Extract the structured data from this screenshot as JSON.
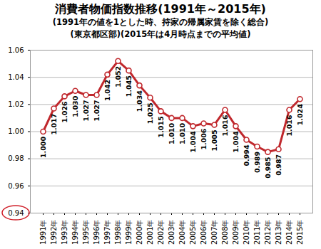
{
  "chart_data": {
    "type": "line",
    "title": "消費者物価指数推移(1991年～2015年)",
    "subtitle": [
      "(1991年の値を1とした時、持家の帰属家賃を除く総合)",
      "(東京都区部)(2015年は4月時点までの平均値)"
    ],
    "categories": [
      "1991年",
      "1992年",
      "1993年",
      "1994年",
      "1995年",
      "1996年",
      "1997年",
      "1998年",
      "1999年",
      "2000年",
      "2001年",
      "2002年",
      "2003年",
      "2004年",
      "2005年",
      "2006年",
      "2007年",
      "2008年",
      "2009年",
      "2010年",
      "2011年",
      "2012年",
      "2013年",
      "2014年",
      "2015年"
    ],
    "values": [
      1.0,
      1.017,
      1.026,
      1.03,
      1.027,
      1.027,
      1.042,
      1.052,
      1.045,
      1.034,
      1.025,
      1.015,
      1.01,
      1.01,
      1.004,
      1.006,
      1.005,
      1.016,
      1.004,
      0.994,
      0.989,
      0.985,
      0.987,
      1.016,
      1.024
    ],
    "value_labels": [
      "1.000",
      "1.017",
      "1.026",
      "1.030",
      "1.027",
      "1.027",
      "1.042",
      "1.052",
      "1.045",
      "1.034",
      "1.025",
      "1.015",
      "1.010",
      "1.010",
      "1.004",
      "1.006",
      "1.005",
      "1.016",
      "1.004",
      "0.994",
      "0.989",
      "0.985",
      "0.987",
      "1.016",
      "1.024"
    ],
    "color": "#c0282d",
    "marker": "circle",
    "data_labels": true,
    "grid": true,
    "ylim": [
      0.94,
      1.06
    ],
    "yticks": [
      0.94,
      0.96,
      0.98,
      {
        "value": 1,
        "label": "1.00"
      },
      1.02,
      1.04,
      1.06
    ]
  }
}
